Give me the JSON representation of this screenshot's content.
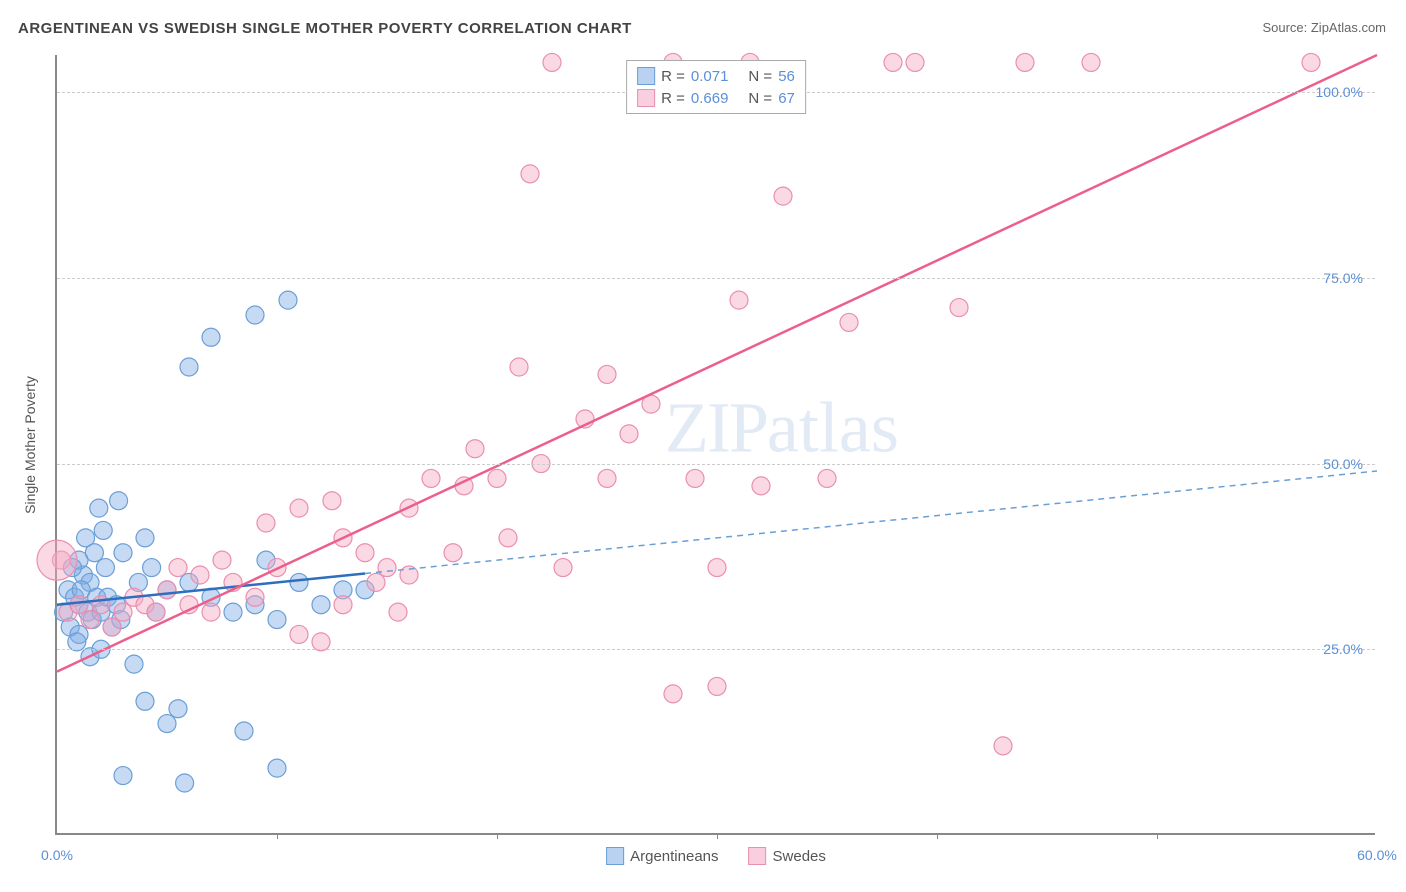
{
  "title": "ARGENTINEAN VS SWEDISH SINGLE MOTHER POVERTY CORRELATION CHART",
  "source": "Source: ZipAtlas.com",
  "watermark": "ZIPatlas",
  "chart": {
    "type": "scatter",
    "xlim": [
      0,
      60
    ],
    "ylim": [
      0,
      105
    ],
    "xticks": [
      0,
      60
    ],
    "xtick_labels": [
      "0.0%",
      "60.0%"
    ],
    "xtick_minors": [
      10,
      20,
      30,
      40,
      50
    ],
    "yticks": [
      25,
      50,
      75,
      100
    ],
    "ytick_labels": [
      "25.0%",
      "50.0%",
      "75.0%",
      "100.0%"
    ],
    "ylabel": "Single Mother Poverty",
    "background_color": "#ffffff",
    "grid_color": "#cccccc",
    "axis_color": "#888888",
    "tick_label_color": "#5b8fd6",
    "series": [
      {
        "name": "Argentineans",
        "label": "Argentineans",
        "color_fill": "rgba(129,173,231,0.45)",
        "color_stroke": "#6a9fd6",
        "marker_radius": 9,
        "R": "0.071",
        "N": "56",
        "trendline": {
          "x1": 0,
          "y1": 31,
          "x2": 60,
          "y2": 49,
          "solid_until_x": 14,
          "stroke": "#2e6fbd",
          "dash_stroke": "#6a9fd6"
        },
        "points": [
          [
            0.3,
            30
          ],
          [
            0.5,
            33
          ],
          [
            0.6,
            28
          ],
          [
            0.8,
            32
          ],
          [
            1.0,
            31
          ],
          [
            1.2,
            35
          ],
          [
            1.0,
            27
          ],
          [
            1.4,
            30
          ],
          [
            1.5,
            34
          ],
          [
            1.6,
            29
          ],
          [
            1.8,
            32
          ],
          [
            2.0,
            30
          ],
          [
            2.2,
            36
          ],
          [
            2.5,
            28
          ],
          [
            2.3,
            32
          ],
          [
            2.7,
            31
          ],
          [
            1.0,
            37
          ],
          [
            1.3,
            40
          ],
          [
            1.7,
            38
          ],
          [
            2.1,
            41
          ],
          [
            2.8,
            45
          ],
          [
            0.9,
            26
          ],
          [
            1.5,
            24
          ],
          [
            2.0,
            25
          ],
          [
            3.5,
            23
          ],
          [
            4.0,
            18
          ],
          [
            5.0,
            15
          ],
          [
            3.0,
            8
          ],
          [
            5.8,
            7
          ],
          [
            10.0,
            9
          ],
          [
            8.5,
            14
          ],
          [
            5.5,
            17
          ],
          [
            4.5,
            30
          ],
          [
            5.0,
            33
          ],
          [
            6.0,
            34
          ],
          [
            7.0,
            32
          ],
          [
            8.0,
            30
          ],
          [
            9.0,
            31
          ],
          [
            9.5,
            37
          ],
          [
            10.0,
            29
          ],
          [
            11.0,
            34
          ],
          [
            13.0,
            33
          ],
          [
            14.0,
            33
          ],
          [
            12.0,
            31
          ],
          [
            6.0,
            63
          ],
          [
            7.0,
            67
          ],
          [
            9.0,
            70
          ],
          [
            10.5,
            72
          ],
          [
            3.0,
            38
          ],
          [
            4.0,
            40
          ],
          [
            4.3,
            36
          ],
          [
            3.7,
            34
          ],
          [
            2.9,
            29
          ],
          [
            1.9,
            44
          ],
          [
            0.7,
            36
          ],
          [
            1.1,
            33
          ]
        ]
      },
      {
        "name": "Swedes",
        "label": "Swedes",
        "color_fill": "rgba(244,168,196,0.45)",
        "color_stroke": "#e98fb0",
        "marker_radius": 9,
        "R": "0.669",
        "N": "67",
        "trendline": {
          "x1": 0,
          "y1": 22,
          "x2": 60,
          "y2": 105,
          "solid_until_x": 60,
          "stroke": "#ed5f8b",
          "dash_stroke": "#ed5f8b"
        },
        "points": [
          [
            0.2,
            37
          ],
          [
            0.5,
            30
          ],
          [
            1.0,
            31
          ],
          [
            1.5,
            29
          ],
          [
            2.0,
            31
          ],
          [
            2.5,
            28
          ],
          [
            3.0,
            30
          ],
          [
            3.5,
            32
          ],
          [
            4.0,
            31
          ],
          [
            4.5,
            30
          ],
          [
            5.0,
            33
          ],
          [
            5.5,
            36
          ],
          [
            6.0,
            31
          ],
          [
            6.5,
            35
          ],
          [
            7.0,
            30
          ],
          [
            7.5,
            37
          ],
          [
            8.0,
            34
          ],
          [
            9.0,
            32
          ],
          [
            10.0,
            36
          ],
          [
            11.0,
            27
          ],
          [
            12.0,
            26
          ],
          [
            13.0,
            31
          ],
          [
            9.5,
            42
          ],
          [
            11.0,
            44
          ],
          [
            13.0,
            40
          ],
          [
            14.0,
            38
          ],
          [
            15.0,
            36
          ],
          [
            16.0,
            35
          ],
          [
            15.5,
            30
          ],
          [
            14.5,
            34
          ],
          [
            16.0,
            44
          ],
          [
            17.0,
            48
          ],
          [
            18.5,
            47
          ],
          [
            20.0,
            48
          ],
          [
            21.0,
            63
          ],
          [
            22.0,
            50
          ],
          [
            23.0,
            36
          ],
          [
            25.0,
            48
          ],
          [
            26.0,
            54
          ],
          [
            28.0,
            19
          ],
          [
            29.0,
            48
          ],
          [
            30.0,
            36
          ],
          [
            31.0,
            72
          ],
          [
            32.0,
            47
          ],
          [
            33.0,
            86
          ],
          [
            25.0,
            62
          ],
          [
            27.0,
            58
          ],
          [
            19.0,
            52
          ],
          [
            22.5,
            104
          ],
          [
            28.0,
            104
          ],
          [
            31.5,
            104
          ],
          [
            35.0,
            48
          ],
          [
            36.0,
            69
          ],
          [
            38.0,
            104
          ],
          [
            39.0,
            104
          ],
          [
            41.0,
            71
          ],
          [
            44.0,
            104
          ],
          [
            47.0,
            104
          ],
          [
            57.0,
            104
          ],
          [
            43.0,
            12
          ],
          [
            30.0,
            20
          ],
          [
            21.5,
            89
          ],
          [
            18.0,
            38
          ],
          [
            20.5,
            40
          ],
          [
            24.0,
            56
          ],
          [
            12.5,
            45
          ],
          [
            0.0,
            37
          ]
        ]
      }
    ],
    "bottom_legend": [
      {
        "label": "Argentineans",
        "fill": "rgba(129,173,231,0.55)",
        "stroke": "#6a9fd6"
      },
      {
        "label": "Swedes",
        "fill": "rgba(244,168,196,0.55)",
        "stroke": "#e98fb0"
      }
    ],
    "top_legend_swatches": [
      {
        "fill": "rgba(129,173,231,0.55)",
        "stroke": "#6a9fd6"
      },
      {
        "fill": "rgba(244,168,196,0.55)",
        "stroke": "#e98fb0"
      }
    ]
  }
}
